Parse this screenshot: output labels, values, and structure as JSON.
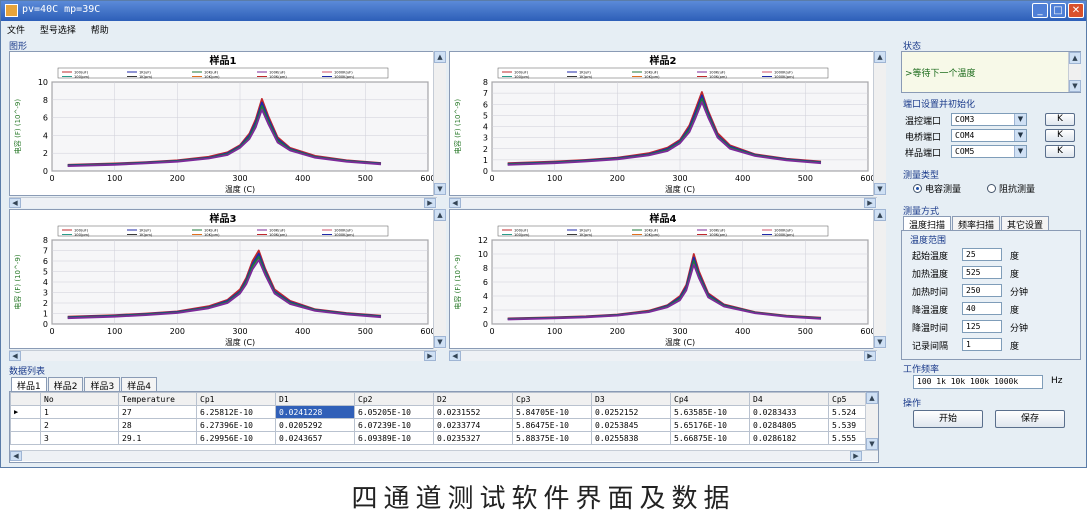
{
  "window": {
    "title": "pv=40C mp=39C"
  },
  "menu": [
    "文件",
    "型号选择",
    "帮助"
  ],
  "graph_group_label": "图形",
  "colors": {
    "series": [
      "#c0282d",
      "#1f2aa8",
      "#1f7a3a",
      "#7c2a9a",
      "#d0506a",
      "#2b9b8a",
      "#3a3a3a",
      "#e07020"
    ]
  },
  "chart_data": [
    {
      "type": "line",
      "title": "样品1",
      "xlabel": "温度 (C)",
      "ylabel": "电容 (F) (10^-9)",
      "xlim": [
        0,
        600
      ],
      "ylim": [
        0,
        10
      ],
      "xticks": [
        "0",
        "100",
        "200",
        "300",
        "400",
        "500",
        "600"
      ],
      "yticks": [
        "0",
        "2",
        "4",
        "6",
        "8",
        "10"
      ],
      "legend": [
        "100(uF)",
        "1K(uF)",
        "10K(uF)",
        "100K(uF)",
        "1000K(uF)",
        "100(pm)",
        "1K(pm)",
        "10K(pm)",
        "100K(pm)",
        "1000K(pm)"
      ],
      "grid": true,
      "x": [
        25,
        100,
        150,
        200,
        250,
        280,
        300,
        315,
        325,
        335,
        345,
        360,
        380,
        420,
        470,
        525
      ],
      "series": [
        {
          "name": "100(uF)",
          "values": [
            0.7,
            0.85,
            1.0,
            1.2,
            1.6,
            2.1,
            2.9,
            4.2,
            5.8,
            8.1,
            6.2,
            3.8,
            2.6,
            1.7,
            1.2,
            0.9
          ]
        },
        {
          "name": "1K(uF)",
          "values": [
            0.65,
            0.8,
            0.95,
            1.15,
            1.5,
            2.0,
            2.8,
            4.0,
            5.5,
            7.7,
            5.9,
            3.6,
            2.5,
            1.6,
            1.15,
            0.85
          ]
        },
        {
          "name": "10K(uF)",
          "values": [
            0.6,
            0.75,
            0.9,
            1.1,
            1.45,
            1.9,
            2.7,
            3.8,
            5.2,
            7.3,
            5.6,
            3.4,
            2.4,
            1.55,
            1.1,
            0.8
          ]
        },
        {
          "name": "100K(uF)",
          "values": [
            0.55,
            0.7,
            0.85,
            1.05,
            1.4,
            1.8,
            2.6,
            3.6,
            4.9,
            6.9,
            5.3,
            3.2,
            2.3,
            1.5,
            1.05,
            0.75
          ]
        }
      ]
    },
    {
      "type": "line",
      "title": "样品2",
      "xlabel": "温度 (C)",
      "ylabel": "电容 (F) (10^-9)",
      "xlim": [
        0,
        600
      ],
      "ylim": [
        0,
        8
      ],
      "xticks": [
        "0",
        "100",
        "200",
        "300",
        "400",
        "500",
        "600"
      ],
      "yticks": [
        "0",
        "1",
        "2",
        "3",
        "4",
        "5",
        "6",
        "7",
        "8"
      ],
      "legend": [
        "100(uF)",
        "1K(uF)",
        "10K(uF)",
        "100K(uF)",
        "1000K(uF)",
        "100(pm)",
        "1K(pm)",
        "10K(pm)",
        "100K(pm)",
        "1000K(pm)"
      ],
      "grid": true,
      "x": [
        25,
        100,
        150,
        200,
        250,
        280,
        300,
        315,
        325,
        335,
        345,
        360,
        380,
        420,
        470,
        525
      ],
      "series": [
        {
          "name": "100(uF)",
          "values": [
            0.7,
            0.85,
            1.0,
            1.2,
            1.6,
            2.1,
            2.8,
            4.1,
            5.6,
            7.1,
            5.4,
            3.4,
            2.3,
            1.5,
            1.1,
            0.85
          ]
        },
        {
          "name": "1K(uF)",
          "values": [
            0.65,
            0.8,
            0.95,
            1.15,
            1.5,
            2.0,
            2.7,
            3.9,
            5.3,
            6.8,
            5.2,
            3.2,
            2.2,
            1.45,
            1.05,
            0.8
          ]
        },
        {
          "name": "10K(uF)",
          "values": [
            0.6,
            0.75,
            0.9,
            1.1,
            1.45,
            1.9,
            2.6,
            3.7,
            5.0,
            6.5,
            5.0,
            3.1,
            2.1,
            1.4,
            1.0,
            0.75
          ]
        },
        {
          "name": "100K(uF)",
          "values": [
            0.55,
            0.7,
            0.85,
            1.05,
            1.4,
            1.8,
            2.5,
            3.5,
            4.8,
            6.2,
            4.8,
            3.0,
            2.0,
            1.35,
            0.95,
            0.7
          ]
        }
      ]
    },
    {
      "type": "line",
      "title": "样品3",
      "xlabel": "温度 (C)",
      "ylabel": "电容 (F) (10^-9)",
      "xlim": [
        0,
        600
      ],
      "ylim": [
        0,
        8
      ],
      "xticks": [
        "0",
        "100",
        "200",
        "300",
        "400",
        "500",
        "600"
      ],
      "yticks": [
        "0",
        "1",
        "2",
        "3",
        "4",
        "5",
        "6",
        "7",
        "8"
      ],
      "legend": [
        "100(uF)",
        "1K(uF)",
        "10K(uF)",
        "100K(uF)",
        "1000K(uF)",
        "100(pm)",
        "1K(pm)",
        "10K(pm)",
        "100K(pm)",
        "1000K(pm)"
      ],
      "grid": true,
      "x": [
        25,
        100,
        150,
        200,
        250,
        280,
        300,
        310,
        320,
        330,
        340,
        355,
        380,
        420,
        470,
        525
      ],
      "series": [
        {
          "name": "100(uF)",
          "values": [
            0.7,
            0.85,
            1.0,
            1.2,
            1.7,
            2.3,
            3.3,
            4.4,
            6.0,
            7.0,
            5.3,
            3.3,
            2.2,
            1.4,
            1.05,
            0.8
          ]
        },
        {
          "name": "1K(uF)",
          "values": [
            0.65,
            0.8,
            0.95,
            1.15,
            1.6,
            2.2,
            3.1,
            4.2,
            5.7,
            6.7,
            5.1,
            3.1,
            2.1,
            1.35,
            1.0,
            0.75
          ]
        },
        {
          "name": "10K(uF)",
          "values": [
            0.6,
            0.75,
            0.9,
            1.1,
            1.55,
            2.1,
            3.0,
            4.0,
            5.5,
            6.4,
            4.9,
            3.0,
            2.0,
            1.3,
            0.95,
            0.7
          ]
        },
        {
          "name": "100K(uF)",
          "values": [
            0.55,
            0.7,
            0.85,
            1.05,
            1.5,
            2.0,
            2.9,
            3.8,
            5.2,
            6.1,
            4.7,
            2.9,
            1.9,
            1.25,
            0.9,
            0.65
          ]
        }
      ]
    },
    {
      "type": "line",
      "title": "样品4",
      "xlabel": "温度 (C)",
      "ylabel": "电容 (F) (10^-9)",
      "xlim": [
        0,
        600
      ],
      "ylim": [
        0,
        12
      ],
      "xticks": [
        "0",
        "100",
        "200",
        "300",
        "400",
        "500",
        "600"
      ],
      "yticks": [
        "0",
        "2",
        "4",
        "6",
        "8",
        "10",
        "12"
      ],
      "legend": [
        "100(uF)",
        "1K(uF)",
        "10K(uF)",
        "100K(uF)",
        "1000K(uF)",
        "100(pm)",
        "1K(pm)",
        "10K(pm)",
        "100K(pm)",
        "1000K(pm)"
      ],
      "grid": true,
      "x": [
        25,
        100,
        150,
        200,
        250,
        280,
        300,
        310,
        315,
        322,
        330,
        345,
        370,
        420,
        470,
        525
      ],
      "series": [
        {
          "name": "100(uF)",
          "values": [
            0.8,
            0.95,
            1.1,
            1.35,
            1.9,
            2.7,
            4.0,
            5.6,
            7.4,
            10.0,
            7.6,
            4.4,
            2.8,
            1.7,
            1.2,
            0.9
          ]
        },
        {
          "name": "1K(uF)",
          "values": [
            0.75,
            0.9,
            1.05,
            1.3,
            1.8,
            2.6,
            3.8,
            5.3,
            7.0,
            9.5,
            7.2,
            4.2,
            2.7,
            1.65,
            1.15,
            0.85
          ]
        },
        {
          "name": "10K(uF)",
          "values": [
            0.7,
            0.85,
            1.0,
            1.25,
            1.75,
            2.5,
            3.6,
            5.0,
            6.6,
            9.0,
            6.9,
            4.0,
            2.6,
            1.6,
            1.1,
            0.8
          ]
        },
        {
          "name": "100K(uF)",
          "values": [
            0.65,
            0.8,
            0.95,
            1.2,
            1.7,
            2.4,
            3.4,
            4.8,
            6.3,
            8.5,
            6.6,
            3.8,
            2.5,
            1.55,
            1.05,
            0.75
          ]
        }
      ]
    }
  ],
  "data_list": {
    "label": "数据列表",
    "tabs": [
      "样品1",
      "样品2",
      "样品3",
      "样品4"
    ],
    "columns": [
      "No",
      "Temperature",
      "Cp1",
      "D1",
      "Cp2",
      "D2",
      "Cp3",
      "D3",
      "Cp4",
      "D4",
      "Cp5"
    ],
    "rows": [
      [
        "1",
        "27",
        "6.25812E-10",
        "0.0241228",
        "6.05205E-10",
        "0.0231552",
        "5.84705E-10",
        "0.0252152",
        "5.63585E-10",
        "0.0283433",
        "5.524"
      ],
      [
        "2",
        "28",
        "6.27396E-10",
        "0.0205292",
        "6.07239E-10",
        "0.0233774",
        "5.86475E-10",
        "0.0253845",
        "5.65176E-10",
        "0.0284805",
        "5.539"
      ],
      [
        "3",
        "29.1",
        "6.29956E-10",
        "0.0243657",
        "6.09389E-10",
        "0.0235327",
        "5.88375E-10",
        "0.0255838",
        "5.66875E-10",
        "0.0286182",
        "5.555"
      ]
    ]
  },
  "status": {
    "label": "状态",
    "text": ">等待下一个温度"
  },
  "ports": {
    "label": "端口设置并初始化",
    "items": [
      {
        "label": "温控端口",
        "value": "COM3",
        "button": "K"
      },
      {
        "label": "电桥端口",
        "value": "COM4",
        "button": "K"
      },
      {
        "label": "样品端口",
        "value": "COM5",
        "button": "K"
      }
    ]
  },
  "measure_type": {
    "label": "测量类型",
    "options": [
      "电容测量",
      "阻抗测量"
    ],
    "selected": 0
  },
  "measure_mode": {
    "label": "测量方式",
    "tabs": [
      "温度扫描",
      "频率扫描",
      "其它设置"
    ],
    "range_label": "温度范围",
    "fields": [
      {
        "label": "起始温度",
        "value": "25",
        "unit": "度"
      },
      {
        "label": "加热温度",
        "value": "525",
        "unit": "度"
      },
      {
        "label": "加热时间",
        "value": "250",
        "unit": "分钟"
      },
      {
        "label": "降温温度",
        "value": "40",
        "unit": "度"
      },
      {
        "label": "降温时间",
        "value": "125",
        "unit": "分钟"
      },
      {
        "label": "记录间隔",
        "value": "1",
        "unit": "度"
      }
    ]
  },
  "work_freq": {
    "label": "工作频率",
    "value": "100 1k 10k 100k 1000k",
    "unit": "Hz"
  },
  "operation": {
    "label": "操作",
    "start": "开始",
    "save": "保存"
  },
  "caption": "四通道测试软件界面及数据"
}
